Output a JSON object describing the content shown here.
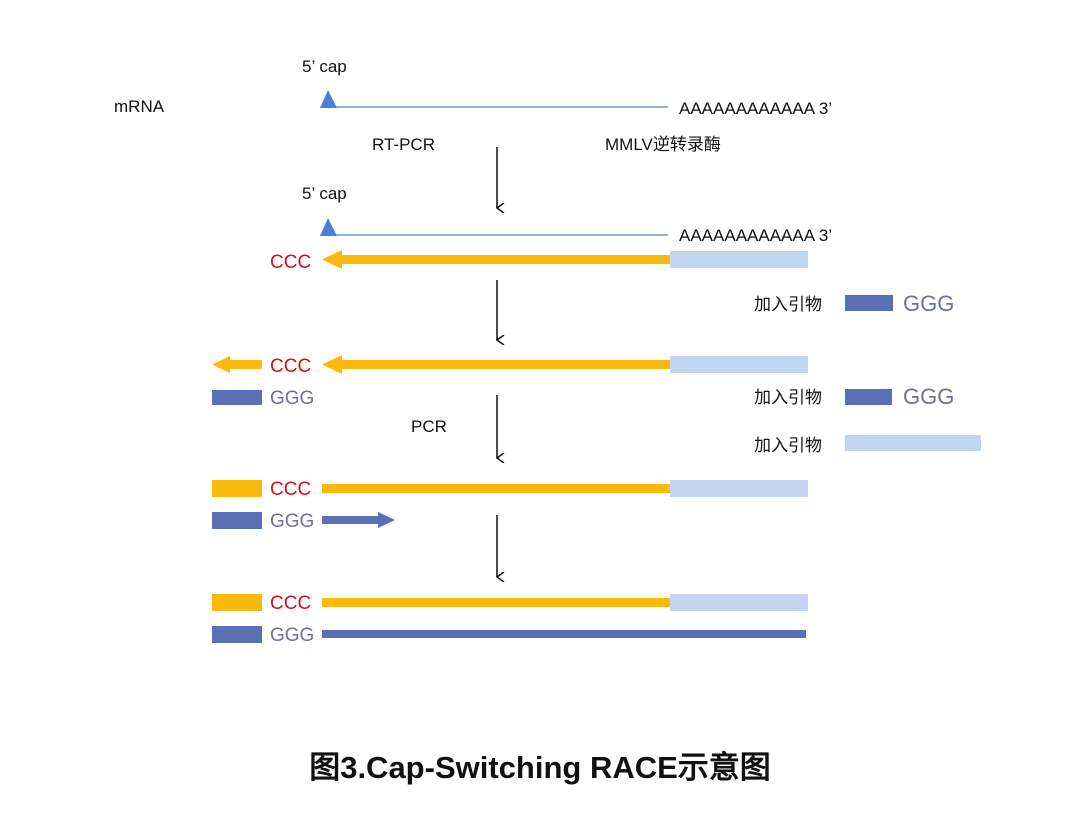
{
  "colors": {
    "mrna": "#6F93D8",
    "cap": "#4A7FD8",
    "cdna": "#FBBA0B",
    "adapter_light": "#C3D5F0",
    "primer_dark": "#5B6FB5",
    "ccc_text": "#D0101E",
    "ggg_text": "#6E7391"
  },
  "labels": {
    "mrna": "mRNA",
    "cap": "5’ cap",
    "polya": "AAAAAAAAAAAA 3’",
    "rtpcr": "RT-PCR",
    "enzyme": "MMLV逆转录酶",
    "pcr": "PCR",
    "ccc": "CCC",
    "ggg": "GGG",
    "add_primer": "加入引物"
  },
  "caption": "图3.Cap-Switching RACE示意图"
}
